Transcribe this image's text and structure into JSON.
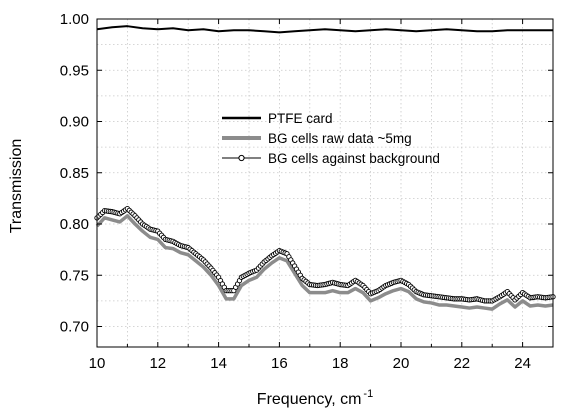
{
  "chart_data": {
    "type": "line",
    "title": "",
    "xlabel": "Frequency, cm",
    "xlabel_superscript": "-1",
    "ylabel": "Transmission",
    "xlim": [
      10,
      25
    ],
    "ylim": [
      0.68,
      1.0
    ],
    "xticks": [
      10,
      12,
      14,
      16,
      18,
      20,
      22,
      24
    ],
    "xtick_labels": [
      "10",
      "12",
      "14",
      "16",
      "18",
      "20",
      "22",
      "24"
    ],
    "yticks": [
      0.7,
      0.75,
      0.8,
      0.85,
      0.9,
      0.95,
      1.0
    ],
    "ytick_labels": [
      "0.70",
      "0.75",
      "0.80",
      "0.85",
      "0.90",
      "0.95",
      "1.00"
    ],
    "grid": true,
    "legend_position": "center",
    "series": [
      {
        "name": "PTFE card",
        "color": "#000000",
        "style": "solid",
        "x": [
          10,
          10.5,
          11,
          11.5,
          12,
          12.5,
          13,
          13.5,
          14,
          14.5,
          15,
          15.5,
          16,
          16.5,
          17,
          17.5,
          18,
          18.5,
          19,
          19.5,
          20,
          20.5,
          21,
          21.5,
          22,
          22.5,
          23,
          23.5,
          24,
          24.5,
          25
        ],
        "values": [
          0.99,
          0.992,
          0.993,
          0.991,
          0.99,
          0.991,
          0.989,
          0.99,
          0.988,
          0.989,
          0.989,
          0.988,
          0.987,
          0.988,
          0.989,
          0.99,
          0.989,
          0.988,
          0.989,
          0.99,
          0.989,
          0.988,
          0.989,
          0.99,
          0.989,
          0.988,
          0.988,
          0.989,
          0.989,
          0.989,
          0.989
        ]
      },
      {
        "name": "BG cells raw data ~5mg",
        "color": "#8c8c8c",
        "style": "solid-thick",
        "x": [
          10,
          10.25,
          10.5,
          10.75,
          11,
          11.25,
          11.5,
          11.75,
          12,
          12.25,
          12.5,
          12.75,
          13,
          13.25,
          13.5,
          13.75,
          14,
          14.25,
          14.5,
          14.75,
          15,
          15.25,
          15.5,
          15.75,
          16,
          16.25,
          16.5,
          16.75,
          17,
          17.25,
          17.5,
          17.75,
          18,
          18.25,
          18.5,
          18.75,
          19,
          19.25,
          19.5,
          19.75,
          20,
          20.25,
          20.5,
          20.75,
          21,
          21.25,
          21.5,
          21.75,
          22,
          22.25,
          22.5,
          22.75,
          23,
          23.25,
          23.5,
          23.75,
          24,
          24.25,
          24.5,
          24.75,
          25
        ],
        "values": [
          0.798,
          0.806,
          0.804,
          0.802,
          0.808,
          0.8,
          0.793,
          0.787,
          0.785,
          0.777,
          0.776,
          0.772,
          0.77,
          0.764,
          0.758,
          0.75,
          0.74,
          0.727,
          0.727,
          0.74,
          0.745,
          0.748,
          0.756,
          0.762,
          0.767,
          0.764,
          0.752,
          0.74,
          0.733,
          0.733,
          0.733,
          0.735,
          0.733,
          0.733,
          0.737,
          0.733,
          0.725,
          0.728,
          0.732,
          0.735,
          0.737,
          0.734,
          0.727,
          0.724,
          0.723,
          0.721,
          0.721,
          0.72,
          0.719,
          0.718,
          0.719,
          0.718,
          0.717,
          0.722,
          0.726,
          0.719,
          0.725,
          0.72,
          0.721,
          0.72,
          0.721
        ]
      },
      {
        "name": "BG cells against background",
        "color": "#000000",
        "style": "marker-open-circle",
        "x": [
          10,
          10.25,
          10.5,
          10.75,
          11,
          11.25,
          11.5,
          11.75,
          12,
          12.25,
          12.5,
          12.75,
          13,
          13.25,
          13.5,
          13.75,
          14,
          14.25,
          14.5,
          14.75,
          15,
          15.25,
          15.5,
          15.75,
          16,
          16.25,
          16.5,
          16.75,
          17,
          17.25,
          17.5,
          17.75,
          18,
          18.25,
          18.5,
          18.75,
          19,
          19.25,
          19.5,
          19.75,
          20,
          20.25,
          20.5,
          20.75,
          21,
          21.25,
          21.5,
          21.75,
          22,
          22.25,
          22.5,
          22.75,
          23,
          23.25,
          23.5,
          23.75,
          24,
          24.25,
          24.5,
          24.75,
          25
        ],
        "values": [
          0.806,
          0.813,
          0.812,
          0.81,
          0.815,
          0.808,
          0.8,
          0.795,
          0.793,
          0.785,
          0.783,
          0.779,
          0.777,
          0.771,
          0.765,
          0.757,
          0.748,
          0.735,
          0.735,
          0.748,
          0.752,
          0.755,
          0.763,
          0.769,
          0.774,
          0.771,
          0.759,
          0.747,
          0.741,
          0.74,
          0.741,
          0.743,
          0.741,
          0.74,
          0.745,
          0.74,
          0.732,
          0.735,
          0.74,
          0.743,
          0.745,
          0.741,
          0.734,
          0.731,
          0.73,
          0.729,
          0.728,
          0.727,
          0.727,
          0.726,
          0.727,
          0.725,
          0.725,
          0.729,
          0.734,
          0.726,
          0.733,
          0.728,
          0.729,
          0.728,
          0.729
        ]
      }
    ]
  }
}
